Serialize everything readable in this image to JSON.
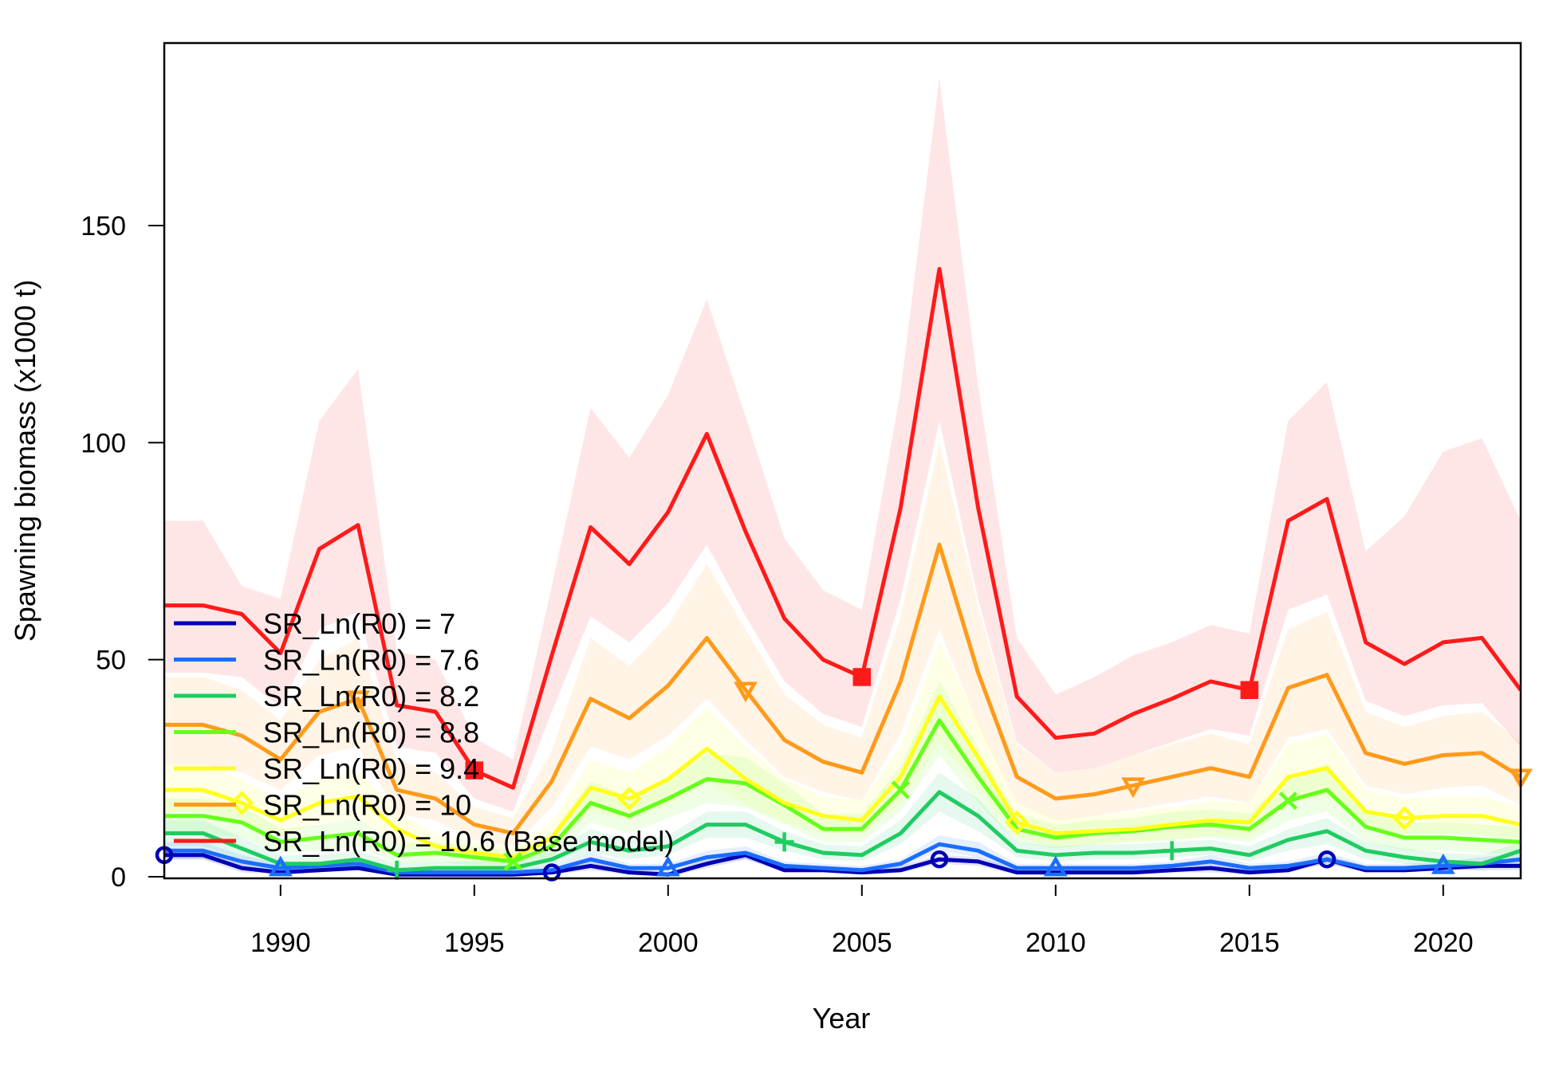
{
  "chart_data": {
    "type": "line",
    "title": "",
    "xlabel": "Year",
    "ylabel": "Spawning biomass (x1000 t)",
    "xlim": [
      1987,
      2022
    ],
    "ylim": [
      0,
      150
    ],
    "x_ticks": [
      1990,
      1995,
      2000,
      2005,
      2010,
      2015,
      2020
    ],
    "y_ticks": [
      0,
      50,
      100,
      150
    ],
    "grid": false,
    "legend_position": "bottom-left",
    "x": [
      1987,
      1988,
      1989,
      1990,
      1991,
      1992,
      1993,
      1994,
      1995,
      1996,
      1997,
      1998,
      1999,
      2000,
      2001,
      2002,
      2003,
      2004,
      2005,
      2006,
      2007,
      2008,
      2009,
      2010,
      2011,
      2012,
      2013,
      2014,
      2015,
      2016,
      2017,
      2018,
      2019,
      2020,
      2021,
      2022
    ],
    "series": [
      {
        "name": "SR_Ln(R0) =  7",
        "color": "#0000b3",
        "marker": "circle",
        "values": [
          5,
          5,
          2,
          1,
          1.5,
          2,
          0.5,
          0.5,
          0.5,
          0.5,
          1,
          2.5,
          1,
          0.5,
          3,
          5,
          1.5,
          1.5,
          1,
          1.5,
          4,
          3.5,
          1,
          1,
          1,
          1,
          1.5,
          2,
          1,
          1.5,
          4,
          1.5,
          1.5,
          2,
          2.5,
          2.5
        ],
        "upper": [
          6,
          6,
          3,
          2,
          2.5,
          3,
          1,
          1,
          1,
          1,
          2,
          3.5,
          2,
          1,
          4,
          6,
          2.5,
          2.5,
          2,
          2.5,
          5,
          4.5,
          2,
          2,
          2,
          2,
          2.5,
          3,
          2,
          2.5,
          5,
          2.5,
          2.5,
          3,
          3.5,
          3.5
        ],
        "lower": [
          4,
          4,
          1,
          0.5,
          1,
          1.5,
          0,
          0,
          0,
          0,
          0.5,
          1.5,
          0.5,
          0,
          2,
          4,
          1,
          1,
          0.5,
          1,
          3,
          2.5,
          0.5,
          0.5,
          0.5,
          0.5,
          1,
          1,
          0.5,
          1,
          3,
          1,
          1,
          1.5,
          1.5,
          1.5
        ]
      },
      {
        "name": "SR_Ln(R0) =  7.6",
        "color": "#1a6dff",
        "marker": "triangle",
        "values": [
          6,
          6,
          3.5,
          2,
          2.5,
          3,
          1,
          1,
          1,
          1,
          1.5,
          4,
          2,
          2,
          4.5,
          5.5,
          2.5,
          2,
          1.5,
          3,
          7.5,
          6,
          2,
          2,
          2,
          2,
          2.5,
          3.5,
          2,
          2.5,
          4,
          2,
          2,
          2.5,
          3,
          4
        ],
        "upper": [
          8,
          8,
          5,
          3,
          3.5,
          4.5,
          2,
          2,
          2,
          2,
          2.5,
          5.5,
          3,
          3,
          6,
          7,
          3.5,
          3,
          2.5,
          4,
          9.5,
          8,
          3,
          3,
          3,
          3,
          3.5,
          5,
          3,
          3.5,
          5.5,
          3,
          3,
          3.5,
          4.5,
          5.5
        ],
        "lower": [
          4,
          4,
          2,
          1,
          1.5,
          2,
          0.5,
          0.5,
          0.5,
          0.5,
          1,
          3,
          1,
          1,
          3,
          4,
          1.5,
          1,
          1,
          2,
          6,
          4.5,
          1,
          1,
          1,
          1,
          1.5,
          2.5,
          1,
          1.5,
          3,
          1,
          1,
          1.5,
          2,
          2.5
        ]
      },
      {
        "name": "SR_Ln(R0) =  8.2",
        "color": "#1fcc62",
        "marker": "plus",
        "values": [
          10,
          10,
          6.5,
          3,
          3,
          4,
          1.5,
          2,
          2,
          2,
          4,
          8,
          6,
          7,
          12,
          12,
          8,
          5.5,
          5,
          10,
          19.5,
          14,
          6,
          5,
          5.5,
          5.5,
          6,
          6.5,
          5,
          8.5,
          10.5,
          6,
          4.5,
          3.5,
          3,
          6
        ],
        "upper": [
          13,
          13,
          9,
          5,
          5,
          6,
          3,
          3.5,
          3.5,
          3.5,
          6,
          11,
          8.5,
          9.5,
          15,
          15,
          10.5,
          7.5,
          7,
          13,
          24,
          18,
          8,
          7,
          7.5,
          7.5,
          8,
          8.5,
          7,
          11,
          13.5,
          8,
          6.5,
          5.5,
          5,
          8
        ],
        "lower": [
          7,
          7,
          4,
          1.5,
          1.5,
          2.5,
          0.5,
          1,
          1,
          1,
          2.5,
          5.5,
          4,
          5,
          9,
          9,
          6,
          4,
          3.5,
          7.5,
          15,
          10.5,
          4.5,
          3.5,
          4,
          4,
          4.5,
          5,
          3.5,
          6,
          7.5,
          4,
          3,
          2,
          1.5,
          4
        ]
      },
      {
        "name": "SR_Ln(R0) =  8.8",
        "color": "#66ff1a",
        "marker": "x",
        "values": [
          14,
          14,
          12.5,
          8,
          9,
          10,
          5,
          5.5,
          4.5,
          3.5,
          7,
          17,
          14,
          18,
          22.5,
          21.5,
          16.5,
          11,
          11,
          20,
          36,
          23,
          11,
          9,
          10,
          10.5,
          11.5,
          12,
          11,
          17.5,
          20,
          11.5,
          9,
          9,
          8.5,
          8
        ],
        "upper": [
          18,
          18,
          16.5,
          11,
          12,
          13.5,
          7.5,
          8,
          7,
          6,
          10,
          22,
          18.5,
          23,
          28.5,
          27.5,
          21.5,
          14.5,
          14.5,
          25.5,
          45,
          29.5,
          14.5,
          12,
          13,
          13.5,
          15,
          15.5,
          14.5,
          23,
          26,
          15.5,
          12.5,
          12.5,
          12,
          11.5
        ],
        "lower": [
          10,
          10,
          9,
          5.5,
          6,
          7,
          3,
          3.5,
          2.5,
          2,
          4.5,
          12.5,
          10,
          13.5,
          17,
          16,
          12,
          8,
          8,
          15,
          28,
          17,
          8,
          6.5,
          7.5,
          8,
          8.5,
          9,
          8,
          13,
          15,
          8,
          6,
          6,
          5.5,
          5
        ]
      },
      {
        "name": "SR_Ln(R0) =  9.4",
        "color": "#ffff1a",
        "marker": "diamond",
        "values": [
          20,
          20,
          17,
          13,
          17,
          18.5,
          11,
          7,
          5.5,
          4.5,
          9,
          20.5,
          18,
          22.5,
          29.5,
          22.5,
          17,
          14,
          13,
          23,
          41.5,
          27.5,
          12.5,
          10,
          10.5,
          11,
          12,
          13,
          12.5,
          23,
          25,
          15,
          13.5,
          14,
          14,
          12
        ],
        "upper": [
          26,
          26,
          22.5,
          17.5,
          22.5,
          24.5,
          15,
          10,
          8,
          7,
          12.5,
          27,
          24,
          30,
          39,
          30,
          22.5,
          18.5,
          17.5,
          30,
          54,
          36,
          17,
          13.5,
          14,
          15,
          16,
          17.5,
          17,
          30.5,
          33,
          20,
          18,
          18.5,
          18.5,
          16
        ],
        "lower": [
          15,
          15,
          12.5,
          9.5,
          12.5,
          13.5,
          7.5,
          5,
          3.5,
          3,
          6,
          15,
          13,
          16.5,
          22,
          16.5,
          12.5,
          10,
          9.5,
          17,
          31,
          20.5,
          9,
          7,
          7.5,
          8,
          8.5,
          9.5,
          9,
          17,
          18.5,
          11,
          9.5,
          10,
          10,
          8.5
        ]
      },
      {
        "name": "SR_Ln(R0) =  10",
        "color": "#ff9a1a",
        "marker": "triangle-down",
        "values": [
          35,
          35,
          32.5,
          27,
          38,
          41,
          20,
          18,
          12,
          10,
          22,
          41,
          36.5,
          44,
          55,
          43,
          31.5,
          26.5,
          24,
          45,
          76.5,
          47,
          23,
          18,
          19,
          21,
          23,
          25,
          23,
          43.5,
          46.5,
          28.5,
          26,
          28,
          28.5,
          23
        ],
        "upper": [
          46,
          46,
          43,
          36,
          50,
          55,
          27,
          24,
          16,
          13.5,
          29,
          55,
          48.5,
          58,
          72,
          57,
          42,
          35,
          32,
          60,
          100,
          62,
          30.5,
          24,
          25,
          28,
          30.5,
          33,
          30.5,
          57,
          61,
          38,
          34.5,
          37,
          38,
          31
        ],
        "lower": [
          26,
          26,
          24,
          20,
          28,
          30,
          14.5,
          13,
          8.5,
          7,
          16,
          30,
          27,
          32.5,
          41,
          31.5,
          23,
          19.5,
          17.5,
          33,
          57,
          35,
          17,
          13,
          14,
          15.5,
          17,
          18.5,
          17,
          32,
          34,
          21,
          19,
          20.5,
          21,
          16.5
        ]
      },
      {
        "name": "SR_Ln(R0) =  10.6 (Base model)",
        "color": "#ff1a1a",
        "marker": "square",
        "values": [
          62.5,
          62.5,
          60.5,
          51.5,
          75.5,
          81,
          39.5,
          38,
          24.5,
          20.5,
          51,
          80.5,
          72,
          84,
          102,
          79.5,
          59.5,
          50,
          46,
          85,
          140,
          85,
          41.5,
          32,
          33,
          37.5,
          41,
          45,
          43,
          82,
          87,
          54,
          49,
          54,
          55,
          43
        ],
        "upper": [
          82,
          82,
          67,
          64,
          105,
          117,
          52,
          50,
          32,
          27,
          67,
          108,
          96.5,
          111,
          133,
          106,
          78,
          66,
          61.5,
          112,
          184,
          113,
          55,
          42,
          46,
          51,
          54,
          58,
          56,
          105,
          114,
          75,
          83,
          98,
          101,
          82
        ],
        "lower": [
          47,
          47,
          46,
          39,
          57,
          61,
          30,
          28.5,
          18,
          15,
          38,
          60,
          54,
          63,
          76.5,
          60,
          45,
          37.5,
          34.5,
          64,
          105,
          64,
          31,
          24,
          25,
          28,
          31,
          34,
          32.5,
          61.5,
          65,
          40.5,
          37,
          39.5,
          40,
          30
        ]
      }
    ]
  }
}
